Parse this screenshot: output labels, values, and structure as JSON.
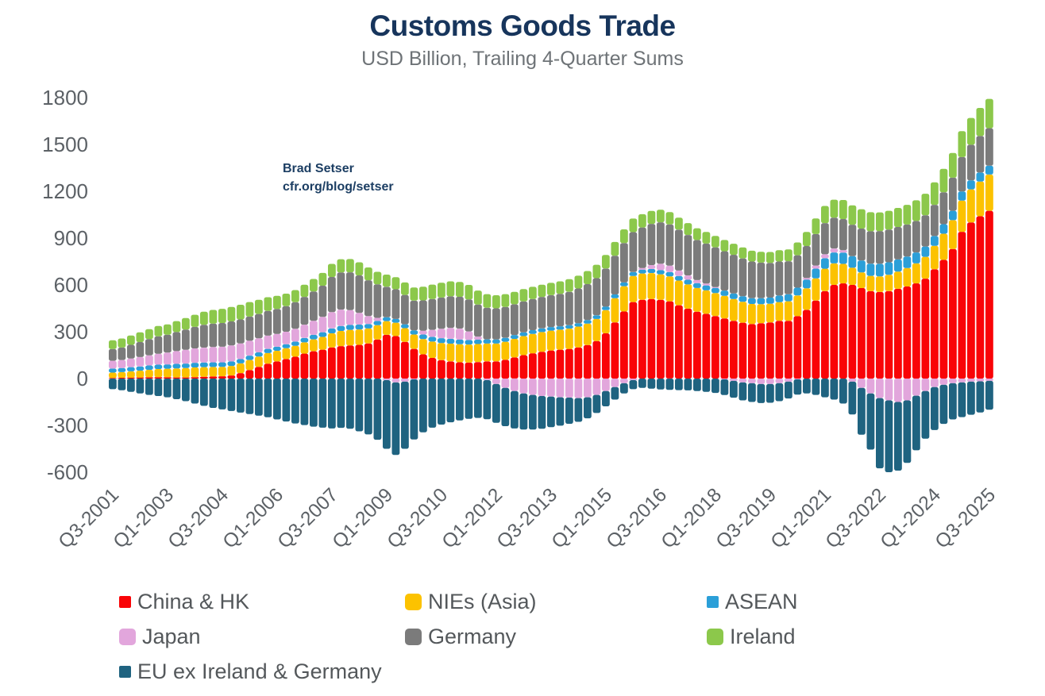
{
  "chart": {
    "title": "Customs Goods Trade",
    "subtitle": "USD Billion, Trailing 4-Quarter Sums",
    "annotation": {
      "line1": "Brad Setser",
      "line2": "cfr.org/blog/setser"
    },
    "colors": {
      "title_navy": "#17355C",
      "subtitle_gray": "#6E7377",
      "axis_gray": "#5C6166",
      "background": "#FFFFFF"
    }
  },
  "chart_data": {
    "type": "bar",
    "stacked": true,
    "title": "Customs Goods Trade",
    "subtitle": "USD Billion, Trailing 4-Quarter Sums",
    "unit": "USD Billion, trailing 4-quarter sums",
    "grid": false,
    "legend_position": "bottom",
    "ylim": [
      -600,
      1800
    ],
    "yticks": [
      1800,
      1500,
      1200,
      900,
      600,
      300,
      0,
      -300,
      -600
    ],
    "x_tick_step": 6,
    "x_tick_labels": [
      "Q3-2001",
      "Q1-2003",
      "Q3-2004",
      "Q1-2006",
      "Q3-2007",
      "Q1-2009",
      "Q3-2010",
      "Q1-2012",
      "Q3-2013",
      "Q1-2015",
      "Q3-2016",
      "Q1-2018",
      "Q3-2019",
      "Q1-2021",
      "Q3-2022",
      "Q1-2024",
      "Q3-2025"
    ],
    "x": [
      "Q3-2001",
      "Q4-2001",
      "Q1-2002",
      "Q2-2002",
      "Q3-2002",
      "Q4-2002",
      "Q1-2003",
      "Q2-2003",
      "Q3-2003",
      "Q4-2003",
      "Q1-2004",
      "Q2-2004",
      "Q3-2004",
      "Q4-2004",
      "Q1-2005",
      "Q2-2005",
      "Q3-2005",
      "Q4-2005",
      "Q1-2006",
      "Q2-2006",
      "Q3-2006",
      "Q4-2006",
      "Q1-2007",
      "Q2-2007",
      "Q3-2007",
      "Q4-2007",
      "Q1-2008",
      "Q2-2008",
      "Q3-2008",
      "Q4-2008",
      "Q1-2009",
      "Q2-2009",
      "Q3-2009",
      "Q4-2009",
      "Q1-2010",
      "Q2-2010",
      "Q3-2010",
      "Q4-2010",
      "Q1-2011",
      "Q2-2011",
      "Q3-2011",
      "Q4-2011",
      "Q1-2012",
      "Q2-2012",
      "Q3-2012",
      "Q4-2012",
      "Q1-2013",
      "Q2-2013",
      "Q3-2013",
      "Q4-2013",
      "Q1-2014",
      "Q2-2014",
      "Q3-2014",
      "Q4-2014",
      "Q1-2015",
      "Q2-2015",
      "Q3-2015",
      "Q4-2015",
      "Q1-2016",
      "Q2-2016",
      "Q3-2016",
      "Q4-2016",
      "Q1-2017",
      "Q2-2017",
      "Q3-2017",
      "Q4-2017",
      "Q1-2018",
      "Q2-2018",
      "Q3-2018",
      "Q4-2018",
      "Q1-2019",
      "Q2-2019",
      "Q3-2019",
      "Q4-2019",
      "Q1-2020",
      "Q2-2020",
      "Q3-2020",
      "Q4-2020",
      "Q1-2021",
      "Q2-2021",
      "Q3-2021",
      "Q4-2021",
      "Q1-2022",
      "Q2-2022",
      "Q3-2022",
      "Q4-2022",
      "Q1-2023",
      "Q2-2023",
      "Q3-2023",
      "Q4-2023",
      "Q1-2024",
      "Q2-2024",
      "Q3-2024",
      "Q4-2024",
      "Q1-2025",
      "Q2-2025",
      "Q3-2025"
    ],
    "series": [
      {
        "name": "China & HK",
        "color": "#F90407",
        "swatch": "small",
        "values": [
          4,
          5,
          6,
          7,
          8,
          9,
          8,
          7,
          7,
          9,
          11,
          13,
          15,
          20,
          35,
          55,
          75,
          95,
          110,
          125,
          140,
          160,
          175,
          185,
          200,
          208,
          212,
          216,
          225,
          250,
          280,
          272,
          235,
          190,
          155,
          132,
          118,
          110,
          104,
          102,
          106,
          110,
          110,
          120,
          135,
          150,
          162,
          172,
          180,
          185,
          190,
          200,
          215,
          240,
          290,
          360,
          430,
          490,
          505,
          510,
          505,
          495,
          470,
          448,
          428,
          415,
          400,
          385,
          370,
          358,
          350,
          355,
          360,
          370,
          370,
          400,
          440,
          500,
          560,
          600,
          610,
          600,
          580,
          560,
          555,
          560,
          575,
          590,
          610,
          640,
          700,
          760,
          830,
          940,
          1000,
          1040,
          1075
        ]
      },
      {
        "name": "NIEs (Asia)",
        "color": "#FCC200",
        "swatch": "large",
        "values": [
          34,
          36,
          40,
          44,
          48,
          52,
          55,
          58,
          60,
          62,
          62,
          61,
          60,
          61,
          62,
          64,
          66,
          68,
          68,
          69,
          70,
          72,
          76,
          82,
          90,
          97,
          100,
          99,
          96,
          92,
          88,
          86,
          88,
          92,
          98,
          105,
          110,
          114,
          116,
          116,
          115,
          114,
          114,
          116,
          119,
          122,
          124,
          126,
          127,
          128,
          130,
          133,
          137,
          142,
          148,
          155,
          162,
          167,
          168,
          166,
          163,
          160,
          158,
          155,
          152,
          150,
          148,
          145,
          140,
          134,
          128,
          122,
          119,
          120,
          125,
          132,
          138,
          142,
          144,
          138,
          125,
          110,
          100,
          98,
          100,
          105,
          110,
          118,
          128,
          140,
          150,
          168,
          185,
          200,
          212,
          222,
          232
        ]
      },
      {
        "name": "ASEAN",
        "color": "#2B9FD8",
        "swatch": "small",
        "values": [
          26,
          26,
          27,
          27,
          28,
          28,
          28,
          29,
          29,
          30,
          30,
          30,
          29,
          29,
          28,
          28,
          27,
          27,
          26,
          26,
          27,
          28,
          29,
          30,
          31,
          32,
          32,
          31,
          29,
          27,
          25,
          24,
          25,
          27,
          29,
          30,
          31,
          31,
          30,
          29,
          28,
          27,
          26,
          25,
          25,
          24,
          24,
          23,
          23,
          22,
          22,
          22,
          23,
          23,
          23,
          24,
          24,
          25,
          25,
          26,
          27,
          28,
          29,
          30,
          31,
          32,
          33,
          34,
          35,
          36,
          37,
          38,
          40,
          42,
          45,
          50,
          56,
          62,
          67,
          70,
          72,
          74,
          76,
          78,
          80,
          80,
          78,
          74,
          70,
          66,
          63,
          61,
          60,
          59,
          58,
          58,
          57
        ]
      },
      {
        "name": "Japan",
        "color": "#E2A6DC",
        "swatch": "large",
        "values": [
          50,
          52,
          55,
          60,
          65,
          70,
          75,
          82,
          88,
          92,
          95,
          98,
          100,
          102,
          100,
          95,
          90,
          85,
          82,
          80,
          82,
          85,
          90,
          98,
          105,
          105,
          95,
          75,
          50,
          20,
          -10,
          -25,
          -20,
          -5,
          25,
          45,
          60,
          70,
          70,
          55,
          20,
          -10,
          -35,
          -60,
          -80,
          -95,
          -105,
          -112,
          -116,
          -120,
          -122,
          -125,
          -120,
          -105,
          -80,
          -55,
          -30,
          -10,
          10,
          25,
          40,
          40,
          35,
          28,
          20,
          12,
          5,
          -5,
          -15,
          -25,
          -30,
          -35,
          -35,
          -30,
          -20,
          -5,
          10,
          20,
          25,
          25,
          15,
          -20,
          -60,
          -95,
          -125,
          -140,
          -150,
          -140,
          -110,
          -80,
          -55,
          -40,
          -30,
          -25,
          -20,
          -18,
          -15
        ]
      },
      {
        "name": "Germany",
        "color": "#7B7B7B",
        "swatch": "large",
        "values": [
          75,
          80,
          88,
          96,
          104,
          112,
          115,
          122,
          130,
          138,
          146,
          150,
          152,
          154,
          154,
          155,
          156,
          158,
          160,
          164,
          170,
          178,
          188,
          200,
          225,
          238,
          242,
          240,
          230,
          215,
          195,
          190,
          188,
          190,
          194,
          198,
          200,
          202,
          204,
          205,
          205,
          203,
          200,
          198,
          197,
          198,
          200,
          202,
          204,
          208,
          214,
          222,
          230,
          238,
          244,
          248,
          252,
          256,
          260,
          264,
          266,
          265,
          262,
          259,
          257,
          256,
          255,
          252,
          248,
          242,
          235,
          228,
          222,
          218,
          212,
          208,
          205,
          202,
          200,
          198,
          200,
          202,
          205,
          208,
          210,
          210,
          208,
          205,
          202,
          200,
          200,
          205,
          212,
          220,
          228,
          234,
          240
        ]
      },
      {
        "name": "Ireland",
        "color": "#8CC84B",
        "swatch": "large",
        "values": [
          56,
          58,
          60,
          62,
          64,
          66,
          66,
          70,
          74,
          78,
          84,
          88,
          91,
          93,
          94,
          93,
          91,
          88,
          84,
          80,
          78,
          78,
          80,
          82,
          84,
          85,
          85,
          84,
          82,
          80,
          78,
          78,
          80,
          84,
          88,
          92,
          95,
          96,
          95,
          93,
          90,
          87,
          84,
          82,
          80,
          79,
          78,
          78,
          79,
          80,
          81,
          82,
          84,
          86,
          87,
          88,
          88,
          87,
          85,
          83,
          81,
          79,
          77,
          76,
          75,
          74,
          73,
          72,
          71,
          70,
          69,
          69,
          70,
          72,
          76,
          82,
          90,
          100,
          110,
          115,
          122,
          124,
          124,
          122,
          120,
          120,
          122,
          126,
          132,
          138,
          144,
          150,
          158,
          166,
          172,
          180,
          188
        ]
      },
      {
        "name": "EU ex Ireland & Germany",
        "color": "#1F6380",
        "swatch": "small",
        "values": [
          -68,
          -75,
          -85,
          -95,
          -105,
          -112,
          -120,
          -132,
          -145,
          -160,
          -175,
          -188,
          -198,
          -208,
          -218,
          -228,
          -238,
          -248,
          -262,
          -275,
          -288,
          -298,
          -308,
          -315,
          -320,
          -316,
          -322,
          -338,
          -358,
          -392,
          -440,
          -465,
          -430,
          -385,
          -345,
          -315,
          -295,
          -280,
          -268,
          -258,
          -252,
          -250,
          -248,
          -245,
          -240,
          -232,
          -222,
          -210,
          -196,
          -182,
          -168,
          -152,
          -135,
          -116,
          -98,
          -80,
          -65,
          -58,
          -60,
          -65,
          -70,
          -72,
          -74,
          -76,
          -80,
          -85,
          -92,
          -100,
          -108,
          -115,
          -120,
          -122,
          -120,
          -115,
          -108,
          -98,
          -95,
          -105,
          -120,
          -135,
          -160,
          -210,
          -300,
          -360,
          -450,
          -460,
          -440,
          -400,
          -350,
          -305,
          -275,
          -250,
          -232,
          -222,
          -212,
          -200,
          -185
        ]
      }
    ]
  }
}
